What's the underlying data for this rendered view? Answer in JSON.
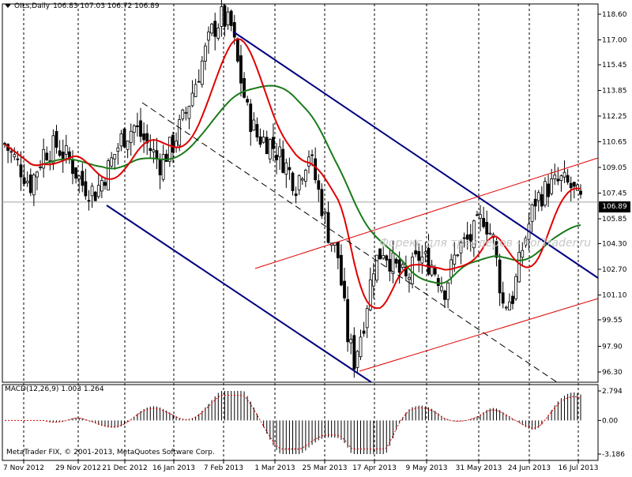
{
  "header": {
    "symbol": "OILs,Daily",
    "ohlc": "106.83 107.03 106.72 106.89"
  },
  "macd": {
    "label": "MACD(12,26,9)",
    "values": "1.003 1.264"
  },
  "copyright": "MetaTrader FIX, © 2001-2013, MetaQuotes Software Corp.",
  "watermark": "Форекс для трейдеров - ForTrader.ru",
  "current_price": "106.89",
  "colors": {
    "candle": "#000000",
    "ma_fast": "#e00000",
    "ma_slow": "#1a7a1a",
    "channel_blue": "#000080",
    "channel_red": "#e00000",
    "macd_signal": "#e00000"
  },
  "chart_data": [
    {
      "type": "candlestick",
      "title": "OILs,Daily",
      "x_ticks": [
        "7 Nov 2012",
        "29 Nov 2012",
        "21 Dec 2012",
        "16 Jan 2013",
        "7 Feb 2013",
        "1 Mar 2013",
        "25 Mar 2013",
        "17 Apr 2013",
        "9 May 2013",
        "31 May 2013",
        "24 Jun 2013",
        "16 Jul 2013"
      ],
      "y_ticks": [
        "118.60",
        "117.00",
        "115.45",
        "113.85",
        "112.25",
        "110.65",
        "109.05",
        "107.45",
        "105.85",
        "104.30",
        "102.70",
        "101.10",
        "99.55",
        "97.90",
        "96.30"
      ],
      "ylim": [
        96.3,
        118.6
      ],
      "last_price": 106.89,
      "close_path": [
        {
          "x": 0,
          "y": 110.5
        },
        {
          "x": 4,
          "y": 109.3
        },
        {
          "x": 8,
          "y": 108.0
        },
        {
          "x": 12,
          "y": 110.0
        },
        {
          "x": 16,
          "y": 110.4
        },
        {
          "x": 20,
          "y": 109.5
        },
        {
          "x": 24,
          "y": 108.0
        },
        {
          "x": 28,
          "y": 107.5
        },
        {
          "x": 32,
          "y": 109.0
        },
        {
          "x": 36,
          "y": 110.8
        },
        {
          "x": 40,
          "y": 111.6
        },
        {
          "x": 44,
          "y": 110.5
        },
        {
          "x": 48,
          "y": 109.3
        },
        {
          "x": 52,
          "y": 110.5
        },
        {
          "x": 56,
          "y": 112.5
        },
        {
          "x": 60,
          "y": 115.0
        },
        {
          "x": 64,
          "y": 117.5
        },
        {
          "x": 67,
          "y": 118.4
        },
        {
          "x": 70,
          "y": 117.8
        },
        {
          "x": 72,
          "y": 115.5
        },
        {
          "x": 75,
          "y": 112.5
        },
        {
          "x": 78,
          "y": 111.0
        },
        {
          "x": 82,
          "y": 110.6
        },
        {
          "x": 86,
          "y": 109.5
        },
        {
          "x": 90,
          "y": 108.0
        },
        {
          "x": 94,
          "y": 110.0
        },
        {
          "x": 97,
          "y": 107.5
        },
        {
          "x": 100,
          "y": 105.0
        },
        {
          "x": 103,
          "y": 103.5
        },
        {
          "x": 106,
          "y": 98.5
        },
        {
          "x": 108,
          "y": 97.0
        },
        {
          "x": 111,
          "y": 99.5
        },
        {
          "x": 114,
          "y": 103.0
        },
        {
          "x": 117,
          "y": 104.0
        },
        {
          "x": 120,
          "y": 103.0
        },
        {
          "x": 124,
          "y": 102.0
        },
        {
          "x": 128,
          "y": 103.5
        },
        {
          "x": 132,
          "y": 103.0
        },
        {
          "x": 136,
          "y": 101.5
        },
        {
          "x": 140,
          "y": 104.0
        },
        {
          "x": 144,
          "y": 104.6
        },
        {
          "x": 148,
          "y": 106.0
        },
        {
          "x": 151,
          "y": 104.5
        },
        {
          "x": 154,
          "y": 100.5
        },
        {
          "x": 157,
          "y": 101.0
        },
        {
          "x": 160,
          "y": 104.0
        },
        {
          "x": 164,
          "y": 107.0
        },
        {
          "x": 168,
          "y": 107.8
        },
        {
          "x": 172,
          "y": 108.2
        },
        {
          "x": 175,
          "y": 107.8
        },
        {
          "x": 178,
          "y": 106.9
        }
      ],
      "overlays": [
        {
          "name": "",
          "kind": "moving-average-fast",
          "color": "#e00000"
        },
        {
          "name": "",
          "kind": "moving-average-slow",
          "color": "#1a7a1a"
        }
      ]
    },
    {
      "type": "bar",
      "title": "MACD(12,26,9)",
      "y_ticks": [
        "2.794",
        "0.00",
        "-3.186"
      ],
      "ylim": [
        -3.186,
        2.794
      ],
      "values_summary": [
        1.003,
        1.264
      ]
    }
  ]
}
